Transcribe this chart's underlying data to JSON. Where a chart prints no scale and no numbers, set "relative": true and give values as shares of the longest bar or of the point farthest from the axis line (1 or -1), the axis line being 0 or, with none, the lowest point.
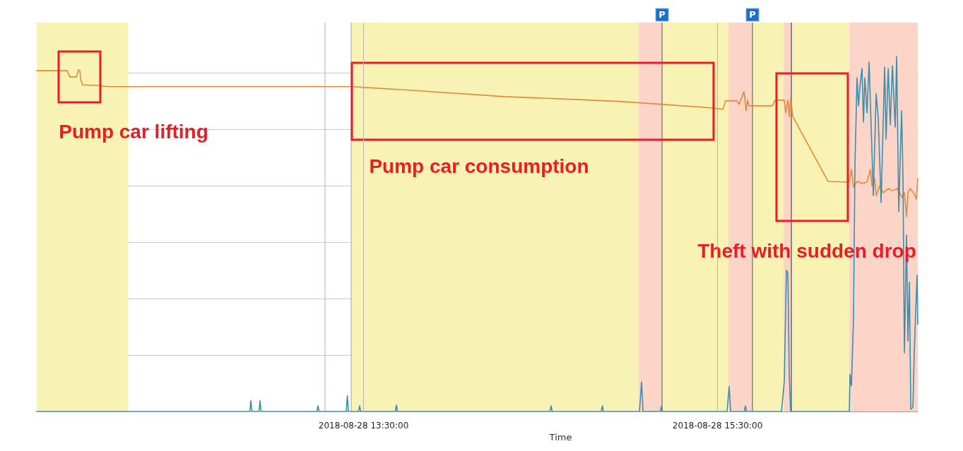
{
  "chart_data": {
    "type": "line",
    "xlabel": "Time",
    "relative": true,
    "grid": true,
    "line_style": "solid",
    "xlim": [
      "2018-08-28T11:39:20",
      "2018-08-28T16:38:00"
    ],
    "xticks": [
      {
        "value": "2018-08-28T13:30:00",
        "label": "2018-08-28 13:30:00"
      },
      {
        "value": "2018-08-28T15:30:00",
        "label": "2018-08-28 15:30:00"
      }
    ],
    "series": [
      {
        "color": "#e3893a",
        "x": [
          "2018-08-28T11:39:21",
          "2018-08-28T11:49:39",
          "2018-08-28T11:50:36",
          "2018-08-28T11:52:45",
          "2018-08-28T11:53:28",
          "2018-08-28T11:53:57",
          "2018-08-28T11:54:12",
          "2018-08-28T11:54:55",
          "2018-08-28T12:00:25",
          "2018-08-28T12:03:32",
          "2018-08-28T13:25:56",
          "2018-08-28T13:45:48",
          "2018-08-28T14:17:40",
          "2018-08-28T14:41:37",
          "2018-08-28T14:57:40",
          "2018-08-28T15:11:19",
          "2018-08-28T15:28:48",
          "2018-08-28T15:31:55",
          "2018-08-28T15:32:52",
          "2018-08-28T15:36:42",
          "2018-08-28T15:37:25",
          "2018-08-28T15:39:06",
          "2018-08-28T15:39:49",
          "2018-08-28T15:40:18",
          "2018-08-28T15:40:47",
          "2018-08-28T15:48:41",
          "2018-08-28T15:49:38",
          "2018-08-28T15:52:45",
          "2018-08-28T15:53:14",
          "2018-08-28T15:53:57",
          "2018-08-28T15:54:26",
          "2018-08-28T15:54:54",
          "2018-08-28T15:55:38",
          "2018-08-28T16:07:36",
          "2018-08-28T16:14:47",
          "2018-08-28T16:15:30",
          "2018-08-28T16:16:13",
          "2018-08-28T16:17:25",
          "2018-08-28T16:19:06",
          "2018-08-28T16:20:47",
          "2018-08-28T16:21:58",
          "2018-08-28T16:22:27",
          "2018-08-28T16:23:25",
          "2018-08-28T16:23:53",
          "2018-08-28T16:25:05",
          "2018-08-28T16:26:17",
          "2018-08-28T16:27:58",
          "2018-08-28T16:29:24",
          "2018-08-28T16:31:04",
          "2018-08-28T16:32:45",
          "2018-08-28T16:33:28",
          "2018-08-28T16:34:11",
          "2018-08-28T16:34:40",
          "2018-08-28T16:35:23",
          "2018-08-28T16:36:35",
          "2018-08-28T16:37:33",
          "2018-08-28T16:38:00"
        ],
        "values": [
          0.96,
          0.96,
          0.942,
          0.942,
          0.962,
          0.96,
          0.936,
          0.92,
          0.918,
          0.915,
          0.915,
          0.905,
          0.887,
          0.879,
          0.873,
          0.865,
          0.855,
          0.851,
          0.875,
          0.875,
          0.865,
          0.901,
          0.847,
          0.877,
          0.861,
          0.861,
          0.877,
          0.877,
          0.841,
          0.877,
          0.831,
          0.881,
          0.831,
          0.648,
          0.646,
          0.682,
          0.632,
          0.648,
          0.642,
          0.646,
          0.682,
          0.636,
          0.654,
          0.608,
          0.636,
          0.616,
          0.628,
          0.622,
          0.628,
          0.602,
          0.616,
          0.549,
          0.616,
          0.628,
          0.616,
          0.598,
          0.656
        ]
      },
      {
        "color": "#3b8eae",
        "x": [
          "2018-08-28T11:39:21",
          "2018-08-28T12:51:33",
          "2018-08-28T12:51:55",
          "2018-08-28T12:52:17",
          "2018-08-28T12:54:40",
          "2018-08-28T12:55:02",
          "2018-08-28T12:55:23",
          "2018-08-28T13:14:19",
          "2018-08-28T13:14:40",
          "2018-08-28T13:15:02",
          "2018-08-28T13:24:15",
          "2018-08-28T13:24:37",
          "2018-08-28T13:24:58",
          "2018-08-28T13:28:27",
          "2018-08-28T13:28:48",
          "2018-08-28T13:29:10",
          "2018-08-28T13:40:54",
          "2018-08-28T13:41:15",
          "2018-08-28T13:41:37",
          "2018-08-28T14:33:21",
          "2018-08-28T14:33:43",
          "2018-08-28T14:34:04",
          "2018-08-28T14:50:43",
          "2018-08-28T14:51:05",
          "2018-08-28T14:51:26",
          "2018-08-28T15:03:39",
          "2018-08-28T15:04:22",
          "2018-08-28T15:04:51",
          "2018-08-28T15:10:43",
          "2018-08-28T15:11:05",
          "2018-08-28T15:11:26",
          "2018-08-28T15:33:21",
          "2018-08-28T15:34:04",
          "2018-08-28T15:34:33",
          "2018-08-28T15:39:13",
          "2018-08-28T15:39:35",
          "2018-08-28T15:39:56",
          "2018-08-28T15:51:48",
          "2018-08-28T15:52:45",
          "2018-08-28T15:53:28",
          "2018-08-28T15:53:57",
          "2018-08-28T15:54:26",
          "2018-08-28T15:54:54",
          "2018-08-28T16:14:47",
          "2018-08-28T16:15:02",
          "2018-08-28T16:15:30",
          "2018-08-28T16:16:13",
          "2018-08-28T16:16:42",
          "2018-08-28T16:17:25",
          "2018-08-28T16:17:54",
          "2018-08-28T16:18:23",
          "2018-08-28T16:19:06",
          "2018-08-28T16:19:35",
          "2018-08-28T16:20:03",
          "2018-08-28T16:20:47",
          "2018-08-28T16:21:30",
          "2018-08-28T16:21:58",
          "2018-08-28T16:22:56",
          "2018-08-28T16:23:53",
          "2018-08-28T16:24:36",
          "2018-08-28T16:25:34",
          "2018-08-28T16:26:46",
          "2018-08-28T16:27:15",
          "2018-08-28T16:27:58",
          "2018-08-28T16:28:41",
          "2018-08-28T16:29:24",
          "2018-08-28T16:30:21",
          "2018-08-28T16:30:50",
          "2018-08-28T16:31:33",
          "2018-08-28T16:32:31",
          "2018-08-28T16:32:59",
          "2018-08-28T16:33:28",
          "2018-08-28T16:34:11",
          "2018-08-28T16:34:40",
          "2018-08-28T16:35:09",
          "2018-08-28T16:35:38",
          "2018-08-28T16:36:21",
          "2018-08-28T16:36:49",
          "2018-08-28T16:37:18",
          "2018-08-28T16:37:47",
          "2018-08-28T16:38:00"
        ],
        "values": [
          0,
          0,
          0.03,
          0,
          0,
          0.03,
          0,
          0,
          0.016,
          0,
          0,
          0.044,
          0,
          0,
          0.016,
          0,
          0,
          0.018,
          0,
          0,
          0.016,
          0,
          0,
          0.016,
          0,
          0,
          0.083,
          0,
          0,
          0.014,
          0,
          0,
          0.07,
          0,
          0,
          0.016,
          0,
          0,
          0.085,
          0.398,
          0.39,
          0.105,
          0,
          0,
          0.105,
          0.072,
          0.264,
          0.696,
          0.94,
          0.861,
          0.915,
          0.966,
          0.815,
          0.94,
          0.841,
          0.984,
          0.861,
          0.608,
          0.895,
          0.827,
          0.588,
          0.97,
          0.767,
          0.966,
          0.807,
          0.974,
          0.801,
          1,
          0.563,
          0.847,
          0.662,
          0.165,
          0.497,
          0.199,
          0.364,
          0.006,
          0.012,
          0.165,
          0.284,
          0.384,
          0.245
        ]
      }
    ],
    "bands": [
      {
        "axis": "x",
        "from": "2018-08-28T11:39:20",
        "to": "2018-08-28T12:10:14",
        "color": "#f8f3b4"
      },
      {
        "axis": "x",
        "from": "2018-08-28T13:25:56",
        "to": "2018-08-28T15:03:25",
        "color": "#f8f3b4"
      },
      {
        "axis": "x",
        "from": "2018-08-28T15:03:25",
        "to": "2018-08-28T15:11:19",
        "color": "#fcd5c8"
      },
      {
        "axis": "x",
        "from": "2018-08-28T15:11:19",
        "to": "2018-08-28T15:33:50",
        "color": "#f8f3b4"
      },
      {
        "axis": "x",
        "from": "2018-08-28T15:33:50",
        "to": "2018-08-28T15:41:58",
        "color": "#fcd5c8"
      },
      {
        "axis": "x",
        "from": "2018-08-28T15:41:58",
        "to": "2018-08-28T15:52:31",
        "color": "#f8f3b4"
      },
      {
        "axis": "x",
        "from": "2018-08-28T15:52:31",
        "to": "2018-08-28T15:55:09",
        "color": "#fcd5c8"
      },
      {
        "axis": "x",
        "from": "2018-08-28T15:55:09",
        "to": "2018-08-28T16:14:47",
        "color": "#f8f3b4"
      },
      {
        "axis": "x",
        "from": "2018-08-28T16:14:47",
        "to": "2018-08-28T16:38:00",
        "color": "#fcd5c8"
      }
    ],
    "ref_lines": [
      {
        "axis": "x",
        "value": "2018-08-28T13:17:04",
        "color": "#b3bbf4"
      },
      {
        "axis": "x",
        "value": "2018-08-28T13:25:56",
        "color": "#b0b0b0"
      },
      {
        "axis": "x",
        "value": "2018-08-28T15:11:19",
        "label": "P",
        "color": "#6b6b6b"
      },
      {
        "axis": "x",
        "value": "2018-08-28T15:41:58",
        "label": "P",
        "color": "#6b6b6b"
      },
      {
        "axis": "x",
        "value": "2018-08-28T15:55:09",
        "color": "#4a4a4a"
      }
    ],
    "annotations": [
      "Pump car lifting",
      "Pump car consumption",
      "Theft with sudden drop"
    ]
  }
}
